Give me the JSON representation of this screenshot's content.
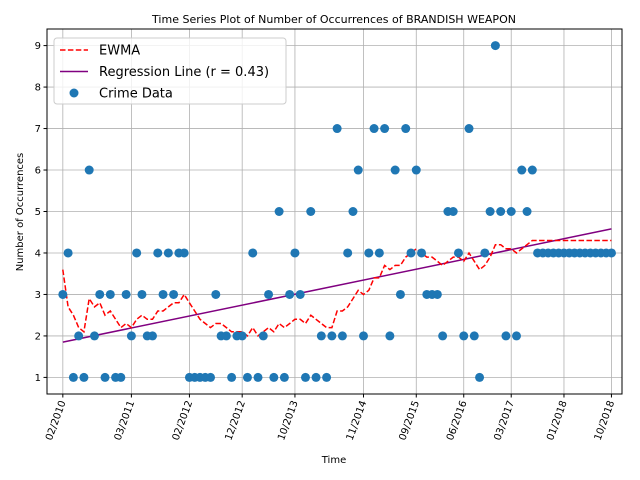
{
  "chart_data": {
    "type": "scatter",
    "title": "Time Series Plot of Number of Occurrences of BRANDISH WEAPON",
    "xlabel": "Time",
    "ylabel": "Number of Occurrences",
    "ylim": [
      0.6,
      9.4
    ],
    "xlim": [
      "2009-11",
      "2018-12"
    ],
    "grid": true,
    "legend_position": "top-left",
    "y_ticks": [
      1,
      2,
      3,
      4,
      5,
      6,
      7,
      8,
      9
    ],
    "x_ticks": [
      {
        "date": "2010-02",
        "label": "02/2010"
      },
      {
        "date": "2011-03",
        "label": "03/2011"
      },
      {
        "date": "2012-02",
        "label": "02/2012"
      },
      {
        "date": "2012-12",
        "label": "12/2012"
      },
      {
        "date": "2013-10",
        "label": "10/2013"
      },
      {
        "date": "2014-11",
        "label": "11/2014"
      },
      {
        "date": "2015-09",
        "label": "09/2015"
      },
      {
        "date": "2016-06",
        "label": "06/2016"
      },
      {
        "date": "2017-03",
        "label": "03/2017"
      },
      {
        "date": "2018-01",
        "label": "01/2018"
      },
      {
        "date": "2018-10",
        "label": "10/2018"
      }
    ],
    "legend": [
      {
        "label": "EWMA",
        "color": "#ff0000",
        "style": "dashed"
      },
      {
        "label": "Regression Line (r = 0.43)",
        "color": "#800080",
        "style": "solid"
      },
      {
        "label": "Crime Data",
        "color": "#1f77b4",
        "style": "marker"
      }
    ],
    "series": [
      {
        "name": "Crime Data",
        "color": "#1f77b4",
        "x": [
          "2010-02",
          "2010-03",
          "2010-04",
          "2010-05",
          "2010-06",
          "2010-07",
          "2010-08",
          "2010-09",
          "2010-10",
          "2010-11",
          "2010-12",
          "2011-01",
          "2011-02",
          "2011-03",
          "2011-04",
          "2011-05",
          "2011-06",
          "2011-07",
          "2011-08",
          "2011-09",
          "2011-10",
          "2011-11",
          "2011-12",
          "2012-01",
          "2012-02",
          "2012-03",
          "2012-04",
          "2012-05",
          "2012-06",
          "2012-07",
          "2012-08",
          "2012-09",
          "2012-10",
          "2012-11",
          "2012-12",
          "2013-01",
          "2013-02",
          "2013-03",
          "2013-04",
          "2013-05",
          "2013-06",
          "2013-07",
          "2013-08",
          "2013-09",
          "2013-10",
          "2013-11",
          "2013-12",
          "2014-01",
          "2014-02",
          "2014-03",
          "2014-04",
          "2014-05",
          "2014-06",
          "2014-07",
          "2014-08",
          "2014-09",
          "2014-10",
          "2014-11",
          "2014-12",
          "2015-01",
          "2015-02",
          "2015-03",
          "2015-04",
          "2015-05",
          "2015-06",
          "2015-07",
          "2015-08",
          "2015-09",
          "2015-10",
          "2015-11",
          "2015-12",
          "2016-01",
          "2016-02",
          "2016-03",
          "2016-04",
          "2016-05",
          "2016-06",
          "2016-07",
          "2016-08",
          "2016-09",
          "2016-10",
          "2016-11",
          "2016-12",
          "2017-01",
          "2017-02",
          "2017-03",
          "2017-04",
          "2017-05",
          "2017-06",
          "2017-07",
          "2017-08",
          "2017-09",
          "2017-10",
          "2017-11",
          "2017-12",
          "2018-01",
          "2018-02",
          "2018-03",
          "2018-04",
          "2018-05",
          "2018-06",
          "2018-07",
          "2018-08",
          "2018-09",
          "2018-10"
        ],
        "values": [
          3,
          4,
          1,
          2,
          1,
          6,
          2,
          3,
          1,
          3,
          1,
          1,
          3,
          2,
          4,
          3,
          2,
          2,
          4,
          3,
          4,
          3,
          4,
          4,
          1,
          1,
          1,
          1,
          1,
          3,
          2,
          2,
          1,
          2,
          2,
          1,
          4,
          1,
          2,
          3,
          1,
          5,
          1,
          3,
          4,
          3,
          1,
          5,
          1,
          2,
          1,
          2,
          7,
          2,
          4,
          5,
          6,
          2,
          4,
          7,
          4,
          7,
          2,
          6,
          3,
          7,
          4,
          6,
          4,
          3,
          3,
          3,
          2,
          5,
          5,
          4,
          2,
          7,
          2,
          1,
          4,
          5,
          9,
          5,
          2,
          5,
          2,
          6,
          5,
          6,
          4,
          4,
          4,
          4,
          4,
          4,
          4,
          4,
          4,
          4,
          4,
          4,
          4,
          4,
          4
        ]
      },
      {
        "name": "EWMA",
        "color": "#ff0000",
        "x": [
          "2010-02",
          "2010-03",
          "2010-04",
          "2010-05",
          "2010-06",
          "2010-07",
          "2010-08",
          "2010-09",
          "2010-10",
          "2010-11",
          "2010-12",
          "2011-01",
          "2011-02",
          "2011-03",
          "2011-04",
          "2011-05",
          "2011-06",
          "2011-07",
          "2011-08",
          "2011-09",
          "2011-10",
          "2011-11",
          "2011-12",
          "2012-01",
          "2012-02",
          "2012-03",
          "2012-04",
          "2012-05",
          "2012-06",
          "2012-07",
          "2012-08",
          "2012-09",
          "2012-10",
          "2012-11",
          "2012-12",
          "2013-01",
          "2013-02",
          "2013-03",
          "2013-04",
          "2013-05",
          "2013-06",
          "2013-07",
          "2013-08",
          "2013-09",
          "2013-10",
          "2013-11",
          "2013-12",
          "2014-01",
          "2014-02",
          "2014-03",
          "2014-04",
          "2014-05",
          "2014-06",
          "2014-07",
          "2014-08",
          "2014-09",
          "2014-10",
          "2014-11",
          "2014-12",
          "2015-01",
          "2015-02",
          "2015-03",
          "2015-04",
          "2015-05",
          "2015-06",
          "2015-07",
          "2015-08",
          "2015-09",
          "2015-10",
          "2015-11",
          "2015-12",
          "2016-01",
          "2016-02",
          "2016-03",
          "2016-04",
          "2016-05",
          "2016-06",
          "2016-07",
          "2016-08",
          "2016-09",
          "2016-10",
          "2016-11",
          "2016-12",
          "2017-01",
          "2017-02",
          "2017-03",
          "2017-04",
          "2017-05",
          "2017-06",
          "2017-07",
          "2017-08",
          "2017-09",
          "2017-10",
          "2017-11",
          "2017-12",
          "2018-01",
          "2018-02",
          "2018-03",
          "2018-04",
          "2018-05",
          "2018-06",
          "2018-07",
          "2018-08",
          "2018-09",
          "2018-10"
        ],
        "values": [
          3.6,
          2.7,
          2.5,
          2.2,
          2.1,
          2.9,
          2.7,
          2.8,
          2.5,
          2.6,
          2.4,
          2.2,
          2.3,
          2.2,
          2.4,
          2.5,
          2.4,
          2.4,
          2.6,
          2.6,
          2.7,
          2.8,
          2.8,
          3.0,
          2.8,
          2.6,
          2.4,
          2.3,
          2.2,
          2.3,
          2.3,
          2.2,
          2.1,
          2.1,
          2.1,
          2.0,
          2.2,
          2.0,
          2.1,
          2.2,
          2.1,
          2.3,
          2.2,
          2.3,
          2.4,
          2.4,
          2.3,
          2.5,
          2.4,
          2.3,
          2.2,
          2.2,
          2.6,
          2.6,
          2.7,
          2.9,
          3.1,
          3.0,
          3.1,
          3.4,
          3.4,
          3.7,
          3.6,
          3.7,
          3.7,
          3.9,
          4.0,
          4.1,
          4.0,
          3.9,
          3.9,
          3.8,
          3.7,
          3.8,
          3.9,
          3.9,
          3.8,
          4.0,
          3.8,
          3.6,
          3.7,
          3.9,
          4.2,
          4.2,
          4.1,
          4.1,
          4.0,
          4.1,
          4.2,
          4.3,
          4.3,
          4.3,
          4.3,
          4.3,
          4.3,
          4.3,
          4.3,
          4.3,
          4.3,
          4.3,
          4.3,
          4.3,
          4.3,
          4.3,
          4.3
        ]
      },
      {
        "name": "Regression Line (r = 0.43)",
        "color": "#800080",
        "x": [
          "2010-02",
          "2018-10"
        ],
        "values": [
          1.85,
          4.58
        ]
      }
    ]
  }
}
